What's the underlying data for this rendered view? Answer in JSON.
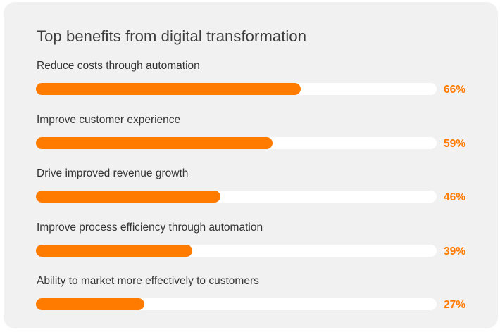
{
  "chart_data": {
    "type": "bar",
    "orientation": "horizontal",
    "title": "Top benefits from digital transformation",
    "categories": [
      "Reduce costs through automation",
      "Improve customer experience",
      "Drive improved revenue growth",
      "Improve process efficiency through automation",
      "Ability to market more effectively to customers"
    ],
    "values": [
      66,
      59,
      46,
      39,
      27
    ],
    "value_labels": [
      "66%",
      "59%",
      "46%",
      "39%",
      "27%"
    ],
    "xlim": [
      0,
      100
    ],
    "grid": false,
    "legend": "none",
    "colors": {
      "bar": "#ff7b00",
      "track": "#ffffff",
      "background": "#f1f1f1",
      "value_text": "#ff7b00"
    }
  }
}
